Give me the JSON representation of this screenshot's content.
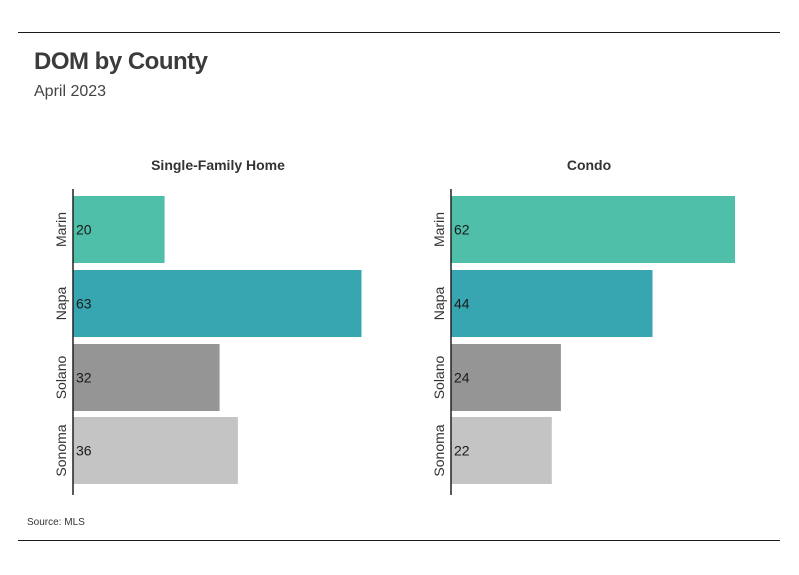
{
  "title": "DOM by County",
  "subtitle": "April 2023",
  "source": "Source:  MLS",
  "colors": {
    "Marin": "#50bfaa",
    "Napa": "#38a6b1",
    "Solano": "#959595",
    "Sonoma": "#c4c4c4"
  },
  "chart_data": [
    {
      "type": "bar",
      "orientation": "horizontal",
      "title": "Single-Family Home",
      "categories": [
        "Marin",
        "Napa",
        "Solano",
        "Sonoma"
      ],
      "values": [
        20,
        63,
        32,
        36
      ],
      "xlim": [
        0,
        64
      ]
    },
    {
      "type": "bar",
      "orientation": "horizontal",
      "title": "Condo",
      "categories": [
        "Marin",
        "Napa",
        "Solano",
        "Sonoma"
      ],
      "values": [
        62,
        44,
        24,
        22
      ],
      "xlim": [
        0,
        64
      ]
    }
  ]
}
